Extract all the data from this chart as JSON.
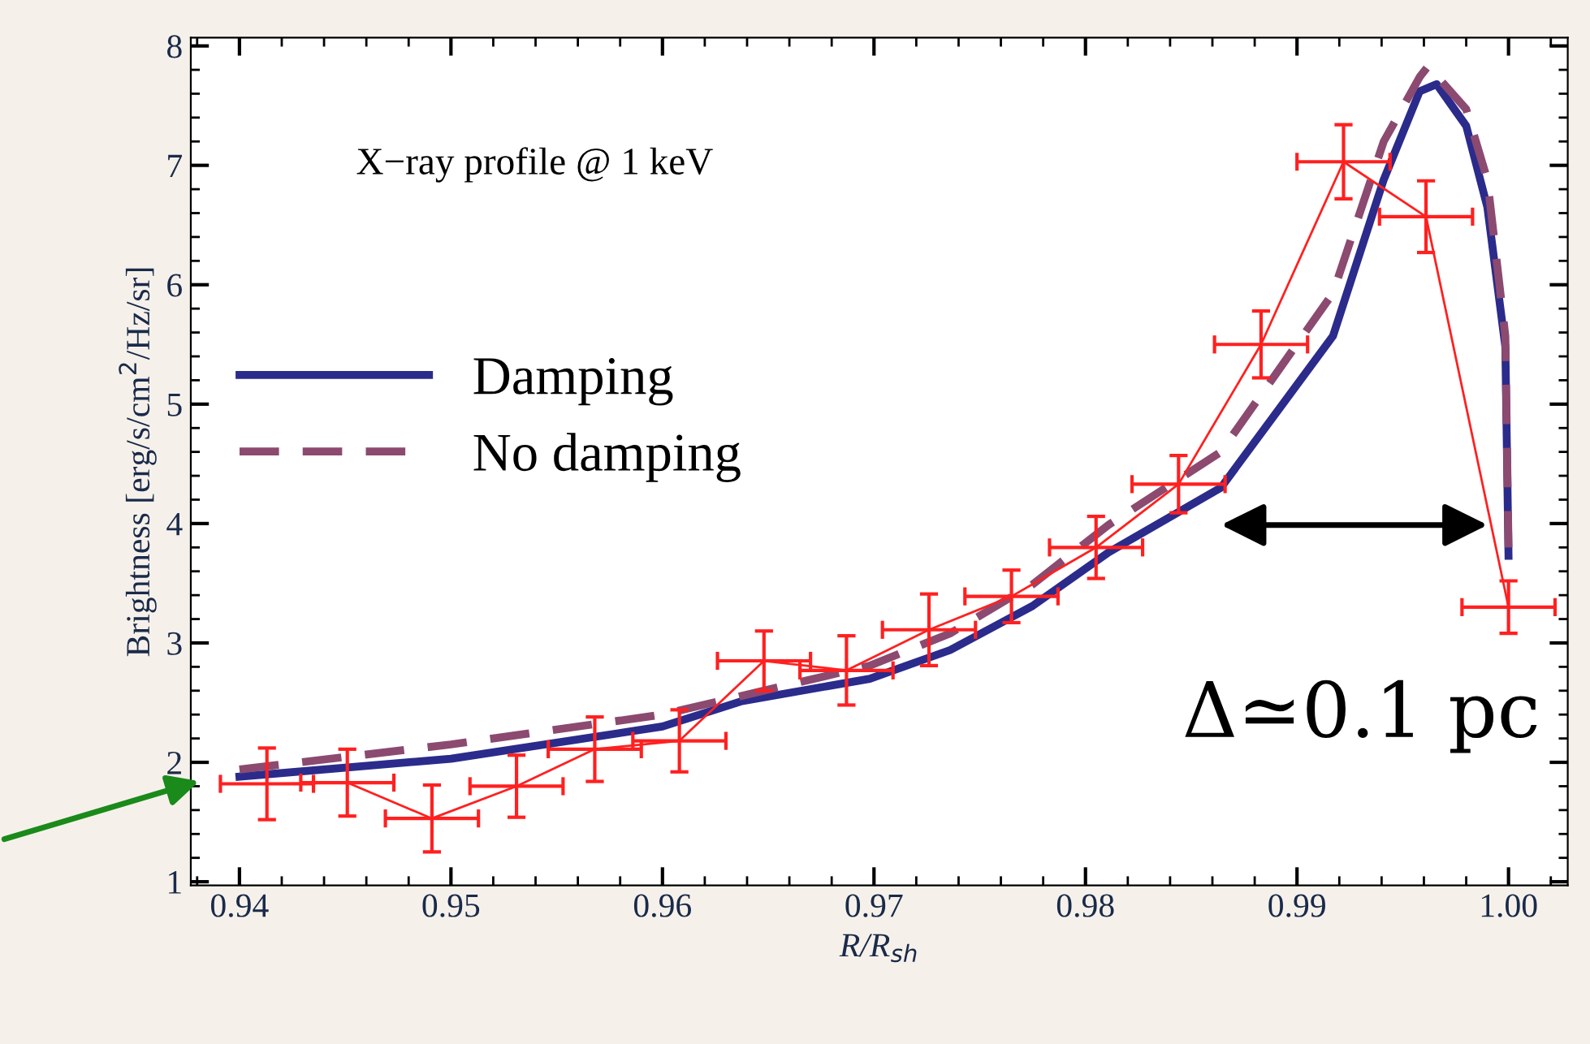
{
  "chart_data": {
    "type": "line",
    "xlabel": "R/R$_{sh}$",
    "ylabel": "Brightness [erg/s/cm$^{2}$/Hz/sr]",
    "annotations": [
      "X−ray profile @ 1 keV",
      "Δ≃0.1 pc"
    ],
    "xlim": [
      0.9377,
      1.0028
    ],
    "ylim": [
      0.97,
      8.07
    ],
    "xticks": [
      0.94,
      0.95,
      0.96,
      0.97,
      0.98,
      0.99,
      {
        "value": 1.0,
        "label": "1.00"
      }
    ],
    "yticks": [
      1,
      2,
      3,
      4,
      5,
      6,
      7,
      8
    ],
    "grid": false,
    "legend": "center left",
    "series": [
      {
        "color": "#ff2020",
        "line_style": "solid",
        "marker": "none",
        "x": [
          0.9413,
          0.9451,
          0.9491,
          0.9531,
          0.9568,
          0.9608,
          0.9648,
          0.9687,
          0.9726,
          0.9765,
          0.9805,
          0.9844,
          0.9883,
          0.9922,
          0.9961,
          1.0
        ],
        "values": [
          1.82,
          1.83,
          1.53,
          1.8,
          2.11,
          2.18,
          2.85,
          2.77,
          3.11,
          3.39,
          3.8,
          4.33,
          5.5,
          7.03,
          6.57,
          3.3
        ],
        "errors": [
          0.3,
          0.28,
          0.28,
          0.26,
          0.27,
          0.26,
          0.25,
          0.29,
          0.3,
          0.22,
          0.26,
          0.24,
          0.28,
          0.31,
          0.3,
          0.22
        ],
        "xerrors": [
          0.0022,
          0.0022,
          0.0022,
          0.0022,
          0.0022,
          0.0022,
          0.0022,
          0.0022,
          0.0022,
          0.0022,
          0.0022,
          0.0022,
          0.0022,
          0.0022,
          0.0022,
          0.0022
        ]
      },
      {
        "name": "Damping",
        "color": "#2b2b8c",
        "line_style": "solid",
        "x": [
          0.94,
          0.95,
          0.96,
          0.9637,
          0.9698,
          0.9736,
          0.9775,
          0.9811,
          0.9864,
          0.9917,
          0.9941,
          0.9958,
          0.9966,
          0.998,
          0.999,
          0.99985,
          1.0
        ],
        "values": [
          1.88,
          2.03,
          2.3,
          2.51,
          2.7,
          2.94,
          3.31,
          3.76,
          4.3,
          5.57,
          6.88,
          7.62,
          7.68,
          7.33,
          6.65,
          5.48,
          3.73
        ]
      },
      {
        "name": "No damping",
        "color": "#8c4a70",
        "line_style": "dashed",
        "x": [
          0.94,
          0.95,
          0.96,
          0.9698,
          0.9736,
          0.9775,
          0.9811,
          0.9864,
          0.9917,
          0.9941,
          0.9958,
          0.9962,
          0.998,
          0.999,
          0.99985,
          1.0
        ],
        "values": [
          1.94,
          2.15,
          2.4,
          2.81,
          3.08,
          3.49,
          3.99,
          4.6,
          5.93,
          7.2,
          7.74,
          7.83,
          7.47,
          6.88,
          5.57,
          3.8
        ]
      }
    ]
  }
}
